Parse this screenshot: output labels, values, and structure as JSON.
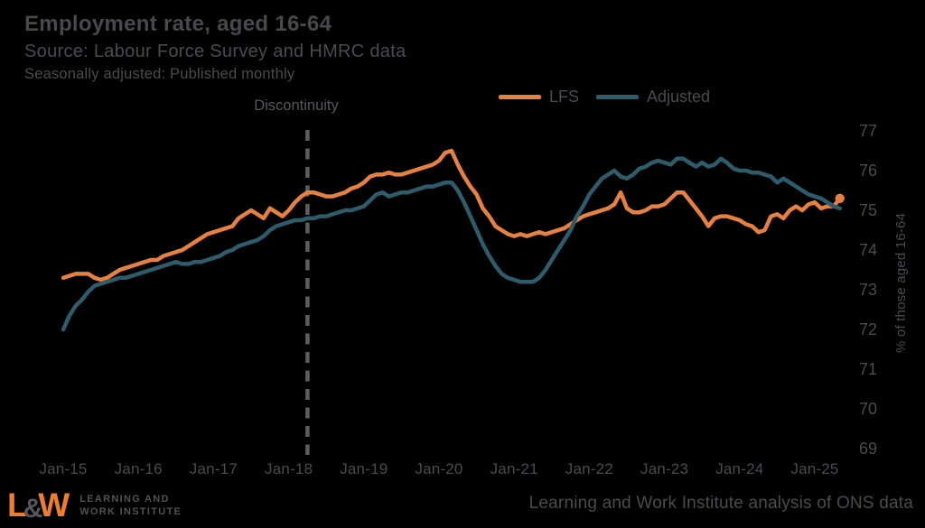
{
  "header": {
    "title": "Employment rate, aged 16-64",
    "source": "Source: Labour Force Survey and HMRC data",
    "note": "Seasonally adjusted: Published monthly"
  },
  "legend": {
    "items": [
      {
        "label": "LFS",
        "color": "#E8803F"
      },
      {
        "label": "Adjusted",
        "color": "#2D5C6B"
      }
    ]
  },
  "annotation": {
    "discontinuity": "Discontinuity"
  },
  "footer": {
    "logo": {
      "l": "L",
      "amp": "&",
      "w": "W",
      "line1": "LEARNING AND",
      "line2": "WORK INSTITUTE"
    },
    "attribution": "Learning and Work Institute analysis of ONS data"
  },
  "colors": {
    "background": "#000000",
    "text": "#4A4B4E",
    "lfs": "#E8803F",
    "adjusted": "#2D5C6B",
    "dashed_line": "#5E5E5E",
    "logo_orange": "#F07D2F"
  },
  "chart_data": {
    "type": "line",
    "title": "Employment rate, aged 16-64",
    "ylabel": "% of those aged 16-64",
    "ylim": [
      69,
      77
    ],
    "grid": true,
    "legend_position": "top",
    "y_ticks": [
      77,
      76,
      75,
      74,
      73,
      72,
      71,
      70,
      69
    ],
    "x_ticks": [
      "Jan-15",
      "Jan-16",
      "Jan-17",
      "Jan-18",
      "Jan-19",
      "Jan-20",
      "Jan-21",
      "Jan-22",
      "Jan-23",
      "Jan-24",
      "Jan-25"
    ],
    "frequency": "monthly",
    "x_start": "Jan-15",
    "x_end": "May-25",
    "discontinuity_index": 39,
    "series": [
      {
        "name": "LFS",
        "color": "#E8803F",
        "end_marker": true,
        "values": [
          73.3,
          73.35,
          73.4,
          73.4,
          73.4,
          73.3,
          73.25,
          73.3,
          73.4,
          73.5,
          73.55,
          73.6,
          73.65,
          73.7,
          73.75,
          73.75,
          73.85,
          73.9,
          73.95,
          74.0,
          74.1,
          74.2,
          74.3,
          74.4,
          74.45,
          74.5,
          74.55,
          74.6,
          74.8,
          74.9,
          75.0,
          74.9,
          74.8,
          75.05,
          74.95,
          74.85,
          75.0,
          75.2,
          75.35,
          75.45,
          75.45,
          75.4,
          75.35,
          75.35,
          75.4,
          75.45,
          75.55,
          75.6,
          75.7,
          75.85,
          75.9,
          75.9,
          75.95,
          75.9,
          75.9,
          75.95,
          76.0,
          76.05,
          76.1,
          76.15,
          76.25,
          76.45,
          76.5,
          76.15,
          75.85,
          75.6,
          75.4,
          75.05,
          74.85,
          74.6,
          74.5,
          74.4,
          74.35,
          74.4,
          74.35,
          74.4,
          74.45,
          74.4,
          74.45,
          74.5,
          74.55,
          74.65,
          74.75,
          74.85,
          74.9,
          74.95,
          75.0,
          75.05,
          75.15,
          75.45,
          75.05,
          74.95,
          74.95,
          75.0,
          75.1,
          75.1,
          75.15,
          75.3,
          75.45,
          75.45,
          75.25,
          75.05,
          74.85,
          74.6,
          74.8,
          74.85,
          74.85,
          74.8,
          74.75,
          74.65,
          74.6,
          74.45,
          74.5,
          74.85,
          74.9,
          74.8,
          75.0,
          75.1,
          75.0,
          75.15,
          75.2,
          75.05,
          75.1,
          75.1,
          75.3
        ]
      },
      {
        "name": "Adjusted",
        "color": "#2D5C6B",
        "end_marker": false,
        "values": [
          72.0,
          72.35,
          72.6,
          72.75,
          72.95,
          73.1,
          73.15,
          73.2,
          73.25,
          73.3,
          73.3,
          73.35,
          73.4,
          73.45,
          73.5,
          73.55,
          73.6,
          73.65,
          73.7,
          73.65,
          73.65,
          73.7,
          73.7,
          73.75,
          73.8,
          73.85,
          73.95,
          74.0,
          74.1,
          74.15,
          74.2,
          74.25,
          74.35,
          74.5,
          74.6,
          74.65,
          74.7,
          74.75,
          74.75,
          74.8,
          74.8,
          74.85,
          74.85,
          74.9,
          74.95,
          75.0,
          75.0,
          75.05,
          75.1,
          75.25,
          75.4,
          75.45,
          75.35,
          75.4,
          75.45,
          75.45,
          75.5,
          75.55,
          75.6,
          75.6,
          75.65,
          75.7,
          75.7,
          75.5,
          75.2,
          74.85,
          74.5,
          74.15,
          73.85,
          73.6,
          73.4,
          73.3,
          73.25,
          73.2,
          73.2,
          73.2,
          73.3,
          73.5,
          73.75,
          74.0,
          74.25,
          74.5,
          74.85,
          75.1,
          75.4,
          75.6,
          75.8,
          75.9,
          76.0,
          75.85,
          75.8,
          75.9,
          76.05,
          76.1,
          76.2,
          76.25,
          76.2,
          76.15,
          76.3,
          76.3,
          76.2,
          76.1,
          76.2,
          76.1,
          76.15,
          76.3,
          76.2,
          76.05,
          76.0,
          76.0,
          75.95,
          75.95,
          75.9,
          75.85,
          75.7,
          75.8,
          75.7,
          75.6,
          75.5,
          75.4,
          75.35,
          75.3,
          75.2,
          75.1,
          75.05
        ]
      }
    ]
  }
}
